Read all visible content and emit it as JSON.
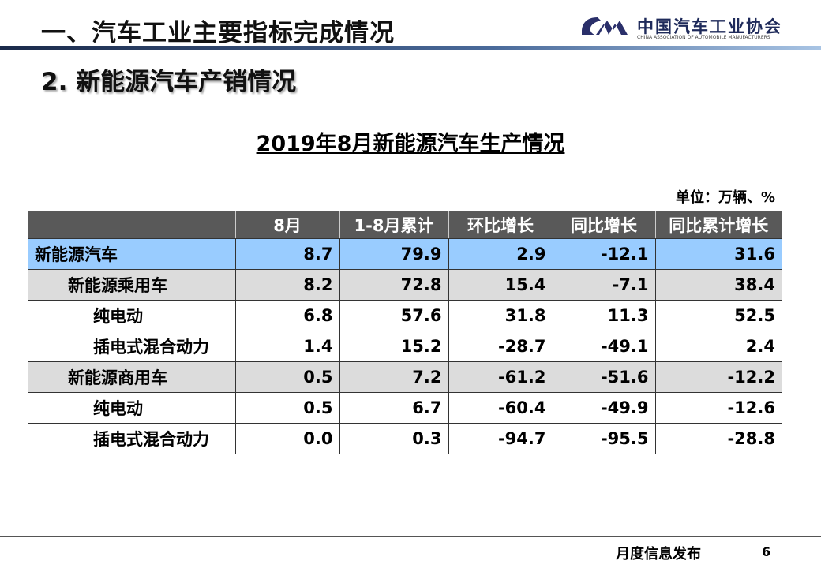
{
  "header": {
    "title": "一、汽车工业主要指标完成情况",
    "logo_cn": "中国汽车工业协会",
    "logo_en": "CHINA ASSOCIATION OF AUTOMOBILE MANUFACTURERS"
  },
  "subtitle": "2. 新能源汽车产销情况",
  "table_title": "2019年8月新能源汽车生产情况",
  "unit": "单位：万辆、%",
  "columns": [
    "",
    "8月",
    "1-8月累计",
    "环比增长",
    "同比增长",
    "同比累计增长"
  ],
  "rows": [
    {
      "label": "新能源汽车",
      "values": [
        "8.7",
        "79.9",
        "2.9",
        "-12.1",
        "31.6"
      ]
    },
    {
      "label": "新能源乘用车",
      "values": [
        "8.2",
        "72.8",
        "15.4",
        "-7.1",
        "38.4"
      ]
    },
    {
      "label": "纯电动",
      "values": [
        "6.8",
        "57.6",
        "31.8",
        "11.3",
        "52.5"
      ]
    },
    {
      "label": "插电式混合动力",
      "values": [
        "1.4",
        "15.2",
        "-28.7",
        "-49.1",
        "2.4"
      ]
    },
    {
      "label": "新能源商用车",
      "values": [
        "0.5",
        "7.2",
        "-61.2",
        "-51.6",
        "-12.2"
      ]
    },
    {
      "label": "纯电动",
      "values": [
        "0.5",
        "6.7",
        "-60.4",
        "-49.9",
        "-12.6"
      ]
    },
    {
      "label": "插电式混合动力",
      "values": [
        "0.0",
        "0.3",
        "-94.7",
        "-95.5",
        "-28.8"
      ]
    }
  ],
  "footer": {
    "label": "月度信息发布",
    "page": "6"
  }
}
